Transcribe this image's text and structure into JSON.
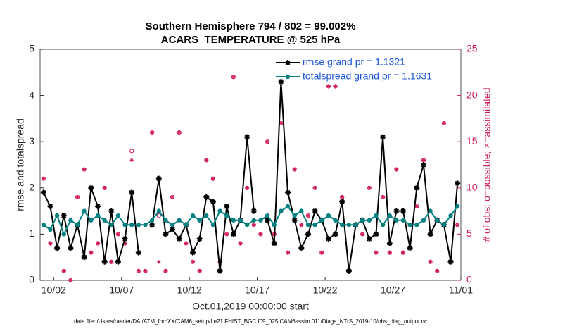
{
  "chart_data": {
    "type": "line",
    "title": "Southern Hemisphere 794 / 802 = 99.002%",
    "subtitle": "ACARS_TEMPERATURE @ 525 hPa",
    "xlabel": "Oct.01,2019 00:00:00 start",
    "ylabel": "rmse and totalspread",
    "y2label": "# of obs: o=possible; ×=assimilated",
    "footnote": "data file: /Users/raeder/DAI/ATM_forcXX/CAM6_setup/f.e21.FHIST_BGC.f09_025.CAM6assim.011/Diags_NTrS_2019-10/obs_diag_output.nc",
    "x": [
      0.25,
      0.75,
      1.25,
      1.75,
      2.25,
      2.75,
      3.25,
      3.75,
      4.25,
      4.75,
      5.25,
      5.75,
      6.25,
      6.75,
      7.25,
      7.75,
      8.25,
      8.75,
      9.25,
      9.75,
      10.25,
      10.75,
      11.25,
      11.75,
      12.25,
      12.75,
      13.25,
      13.75,
      14.25,
      14.75,
      15.25,
      15.75,
      16.25,
      16.75,
      17.25,
      17.75,
      18.25,
      18.75,
      19.25,
      19.75,
      20.25,
      20.75,
      21.25,
      21.75,
      22.25,
      22.75,
      23.25,
      23.75,
      24.25,
      24.75,
      25.25,
      25.75,
      26.25,
      26.75,
      27.25,
      27.75,
      28.25,
      28.75,
      29.25,
      29.75,
      30.25,
      30.75
    ],
    "xlim": [
      0,
      31
    ],
    "xticks": [
      {
        "value": 1,
        "label": "10/02"
      },
      {
        "value": 6,
        "label": "10/07"
      },
      {
        "value": 11,
        "label": "10/12"
      },
      {
        "value": 16,
        "label": "10/17"
      },
      {
        "value": 21,
        "label": "10/22"
      },
      {
        "value": 26,
        "label": "10/27"
      },
      {
        "value": 31,
        "label": "11/01"
      }
    ],
    "ylim": [
      0,
      5
    ],
    "yticks": [
      0,
      1,
      2,
      3,
      4,
      5
    ],
    "y2lim": [
      0,
      25
    ],
    "y2ticks": [
      0,
      5,
      10,
      15,
      20,
      25
    ],
    "legend": "upper right",
    "series": [
      {
        "name": "rmse grand pr = 1.1321",
        "color": "#000000",
        "values": [
          1.9,
          1.6,
          0.7,
          1.4,
          0.7,
          1.2,
          0.5,
          2.0,
          1.6,
          0.4,
          1.5,
          0.4,
          0.9,
          1.9,
          0.6,
          null,
          1.2,
          2.2,
          1.0,
          1.1,
          0.9,
          1.2,
          0.6,
          0.9,
          1.8,
          1.7,
          0.2,
          1.6,
          1.0,
          1.3,
          3.1,
          1.5,
          null,
          1.3,
          0.8,
          4.3,
          1.9,
          1.3,
          0.7,
          1.0,
          1.5,
          1.3,
          0.9,
          1.0,
          1.7,
          0.2,
          1.2,
          1.3,
          0.9,
          1.0,
          3.1,
          0.8,
          1.5,
          1.5,
          0.7,
          2.0,
          2.5,
          1.0,
          1.3,
          1.2,
          0.4,
          2.1
        ]
      },
      {
        "name": "totalspread grand pr = 1.1631",
        "color": "#008080",
        "values": [
          1.2,
          1.1,
          1.4,
          1.0,
          1.3,
          1.2,
          1.5,
          1.3,
          1.4,
          1.3,
          1.2,
          1.4,
          1.2,
          1.2,
          1.2,
          1.2,
          1.3,
          1.5,
          1.3,
          1.2,
          1.3,
          1.2,
          1.4,
          1.3,
          1.4,
          1.2,
          1.5,
          1.4,
          1.3,
          1.3,
          1.2,
          1.3,
          1.3,
          1.4,
          1.2,
          1.5,
          1.6,
          1.4,
          1.5,
          1.2,
          1.2,
          1.3,
          1.4,
          1.3,
          1.2,
          1.2,
          1.2,
          1.3,
          1.3,
          1.4,
          1.2,
          1.4,
          1.3,
          1.3,
          1.2,
          1.2,
          1.3,
          1.5,
          1.3,
          1.2,
          1.4,
          1.6
        ]
      },
      {
        "name": "possible",
        "color": "#d11a5a",
        "axis": "y2",
        "values": [
          11,
          4,
          7,
          1,
          0,
          9,
          12,
          3,
          4,
          10,
          2,
          5,
          4,
          14,
          1,
          1,
          16,
          7,
          1,
          9,
          16,
          4,
          2,
          1,
          13,
          11,
          2,
          5,
          22,
          4,
          10,
          6,
          5,
          15,
          5,
          17,
          3,
          12,
          6,
          7,
          10,
          3,
          21,
          21,
          9,
          1,
          6,
          5,
          10,
          3,
          9,
          3,
          12,
          3,
          6,
          8,
          13,
          2,
          1,
          17,
          2,
          6
        ]
      },
      {
        "name": "assimilated",
        "color": "#d11a5a",
        "axis": "y2",
        "values": [
          11,
          4,
          7,
          1,
          0,
          9,
          12,
          3,
          4,
          10,
          2,
          5,
          4,
          13,
          1,
          1,
          16,
          2,
          1,
          9,
          16,
          4,
          2,
          1,
          13,
          11,
          2,
          5,
          22,
          4,
          10,
          6,
          5,
          15,
          5,
          17,
          3,
          12,
          6,
          7,
          10,
          3,
          21,
          21,
          9,
          1,
          6,
          5,
          10,
          3,
          9,
          3,
          12,
          3,
          6,
          8,
          13,
          2,
          1,
          17,
          2,
          6
        ]
      }
    ]
  }
}
